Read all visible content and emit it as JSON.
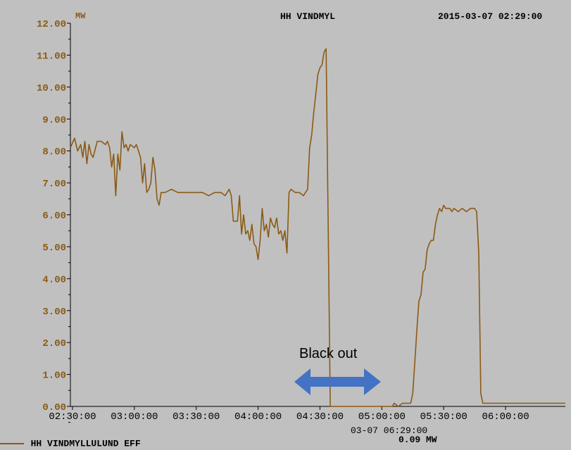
{
  "header": {
    "title": "HH VINDMYL",
    "datetime": "2015-03-07 02:29:00"
  },
  "footer": {
    "series_label": "HH VINDMYLLULUND EFF",
    "cursor_time": "03-07 06:29:00",
    "cursor_value": "0.09 MW"
  },
  "annotation": {
    "text": "Black out",
    "arrow_color": "#4472c4"
  },
  "colors": {
    "background": "#c0c0c0",
    "series": "#8b5a14",
    "y_ticks": "#8b5a14",
    "axis": "#000000"
  },
  "chart_data": {
    "type": "line",
    "title": "HH VINDMYL",
    "ylabel": "MW",
    "ylim": [
      0,
      12
    ],
    "y_ticks": [
      "0.00",
      "1.00",
      "2.00",
      "3.00",
      "4.00",
      "5.00",
      "6.00",
      "7.00",
      "8.00",
      "9.00",
      "10.00",
      "11.00",
      "12.00"
    ],
    "xlim": [
      "02:29:00",
      "06:29:00"
    ],
    "x_ticks": [
      "02:30:00",
      "03:00:00",
      "03:30:00",
      "04:00:00",
      "04:30:00",
      "05:00:00",
      "05:30:00",
      "06:00:00"
    ],
    "grid": false,
    "series": [
      {
        "name": "HH VINDMYLLULUND EFF",
        "points": [
          [
            "02:29:00",
            8.1
          ],
          [
            "02:31:00",
            8.4
          ],
          [
            "02:32:30",
            8.0
          ],
          [
            "02:34:00",
            8.2
          ],
          [
            "02:35:00",
            7.8
          ],
          [
            "02:36:00",
            8.3
          ],
          [
            "02:37:00",
            7.6
          ],
          [
            "02:38:00",
            8.2
          ],
          [
            "02:39:00",
            7.9
          ],
          [
            "02:40:00",
            7.8
          ],
          [
            "02:42:00",
            8.3
          ],
          [
            "02:44:00",
            8.3
          ],
          [
            "02:46:00",
            8.2
          ],
          [
            "02:47:00",
            8.3
          ],
          [
            "02:48:00",
            8.1
          ],
          [
            "02:49:00",
            7.5
          ],
          [
            "02:50:00",
            7.9
          ],
          [
            "02:51:00",
            6.6
          ],
          [
            "02:52:00",
            7.9
          ],
          [
            "02:53:00",
            7.4
          ],
          [
            "02:54:00",
            8.6
          ],
          [
            "02:55:00",
            8.1
          ],
          [
            "02:56:00",
            8.2
          ],
          [
            "02:57:00",
            8.0
          ],
          [
            "02:58:00",
            8.2
          ],
          [
            "03:00:00",
            8.1
          ],
          [
            "03:01:00",
            8.2
          ],
          [
            "03:02:00",
            8.0
          ],
          [
            "03:03:00",
            7.8
          ],
          [
            "03:04:00",
            7.0
          ],
          [
            "03:05:00",
            7.6
          ],
          [
            "03:06:00",
            6.7
          ],
          [
            "03:07:00",
            6.8
          ],
          [
            "03:08:00",
            7.0
          ],
          [
            "03:09:00",
            7.8
          ],
          [
            "03:10:00",
            7.4
          ],
          [
            "03:11:00",
            6.5
          ],
          [
            "03:12:00",
            6.3
          ],
          [
            "03:13:00",
            6.7
          ],
          [
            "03:15:00",
            6.7
          ],
          [
            "03:18:00",
            6.8
          ],
          [
            "03:21:00",
            6.7
          ],
          [
            "03:24:00",
            6.7
          ],
          [
            "03:27:00",
            6.7
          ],
          [
            "03:30:00",
            6.7
          ],
          [
            "03:33:00",
            6.7
          ],
          [
            "03:36:00",
            6.6
          ],
          [
            "03:39:00",
            6.7
          ],
          [
            "03:42:00",
            6.7
          ],
          [
            "03:44:00",
            6.6
          ],
          [
            "03:46:00",
            6.8
          ],
          [
            "03:47:00",
            6.6
          ],
          [
            "03:48:00",
            5.8
          ],
          [
            "03:50:00",
            5.8
          ],
          [
            "03:51:00",
            6.6
          ],
          [
            "03:52:00",
            5.4
          ],
          [
            "03:53:00",
            6.0
          ],
          [
            "03:54:00",
            5.4
          ],
          [
            "03:55:00",
            5.5
          ],
          [
            "03:56:00",
            5.2
          ],
          [
            "03:57:00",
            5.7
          ],
          [
            "03:58:00",
            5.1
          ],
          [
            "03:59:00",
            5.0
          ],
          [
            "04:00:00",
            4.6
          ],
          [
            "04:01:00",
            5.2
          ],
          [
            "04:02:00",
            6.2
          ],
          [
            "04:03:00",
            5.5
          ],
          [
            "04:04:00",
            5.7
          ],
          [
            "04:05:00",
            5.3
          ],
          [
            "04:06:00",
            5.9
          ],
          [
            "04:07:00",
            5.7
          ],
          [
            "04:08:00",
            5.6
          ],
          [
            "04:09:00",
            5.9
          ],
          [
            "04:10:00",
            5.4
          ],
          [
            "04:11:00",
            5.5
          ],
          [
            "04:12:00",
            5.2
          ],
          [
            "04:13:00",
            5.5
          ],
          [
            "04:14:00",
            4.8
          ],
          [
            "04:15:00",
            6.7
          ],
          [
            "04:16:00",
            6.8
          ],
          [
            "04:18:00",
            6.7
          ],
          [
            "04:20:00",
            6.7
          ],
          [
            "04:22:00",
            6.6
          ],
          [
            "04:24:00",
            6.8
          ],
          [
            "04:25:00",
            8.1
          ],
          [
            "04:26:00",
            8.5
          ],
          [
            "04:27:00",
            9.2
          ],
          [
            "04:28:00",
            9.8
          ],
          [
            "04:29:00",
            10.4
          ],
          [
            "04:30:00",
            10.6
          ],
          [
            "04:31:00",
            10.7
          ],
          [
            "04:32:00",
            11.1
          ],
          [
            "04:33:00",
            11.2
          ],
          [
            "04:35:00",
            0.0
          ],
          [
            "04:50:00",
            0.0
          ],
          [
            "05:05:00",
            0.0
          ],
          [
            "05:06:00",
            0.1
          ],
          [
            "05:08:00",
            0.0
          ],
          [
            "05:10:00",
            0.1
          ],
          [
            "05:14:00",
            0.1
          ],
          [
            "05:15:00",
            0.4
          ],
          [
            "05:16:00",
            1.4
          ],
          [
            "05:17:00",
            2.4
          ],
          [
            "05:18:00",
            3.3
          ],
          [
            "05:19:00",
            3.5
          ],
          [
            "05:20:00",
            4.2
          ],
          [
            "05:21:00",
            4.3
          ],
          [
            "05:22:00",
            4.9
          ],
          [
            "05:23:00",
            5.1
          ],
          [
            "05:24:00",
            5.2
          ],
          [
            "05:25:00",
            5.2
          ],
          [
            "05:26:00",
            5.7
          ],
          [
            "05:27:00",
            6.0
          ],
          [
            "05:28:00",
            6.2
          ],
          [
            "05:29:00",
            6.1
          ],
          [
            "05:30:00",
            6.3
          ],
          [
            "05:31:00",
            6.2
          ],
          [
            "05:32:00",
            6.2
          ],
          [
            "05:33:00",
            6.2
          ],
          [
            "05:34:00",
            6.1
          ],
          [
            "05:35:00",
            6.2
          ],
          [
            "05:37:00",
            6.1
          ],
          [
            "05:39:00",
            6.2
          ],
          [
            "05:41:00",
            6.1
          ],
          [
            "05:43:00",
            6.2
          ],
          [
            "05:45:00",
            6.2
          ],
          [
            "05:46:00",
            6.1
          ],
          [
            "05:47:00",
            4.8
          ],
          [
            "05:48:00",
            0.4
          ],
          [
            "05:49:00",
            0.1
          ],
          [
            "05:50:00",
            0.1
          ],
          [
            "05:55:00",
            0.1
          ],
          [
            "06:00:00",
            0.1
          ],
          [
            "06:10:00",
            0.1
          ],
          [
            "06:15:00",
            0.1
          ],
          [
            "06:20:00",
            0.1
          ],
          [
            "06:25:00",
            0.1
          ],
          [
            "06:29:00",
            0.1
          ]
        ]
      }
    ]
  }
}
